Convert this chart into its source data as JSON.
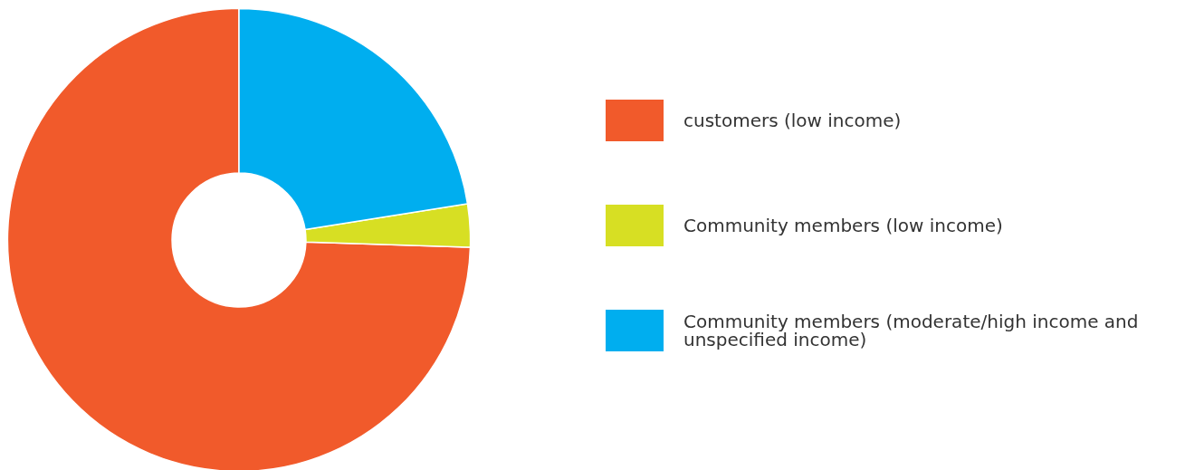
{
  "chart_data": {
    "type": "donut",
    "categories": [
      "customers (low income)",
      "Community members (low income)",
      "Community members (moderate/high income and unspecified income)"
    ],
    "values": [
      74.5,
      3,
      22.5
    ],
    "colors": [
      "#f15a2b",
      "#d7df23",
      "#00aeef"
    ],
    "legend": "right"
  }
}
